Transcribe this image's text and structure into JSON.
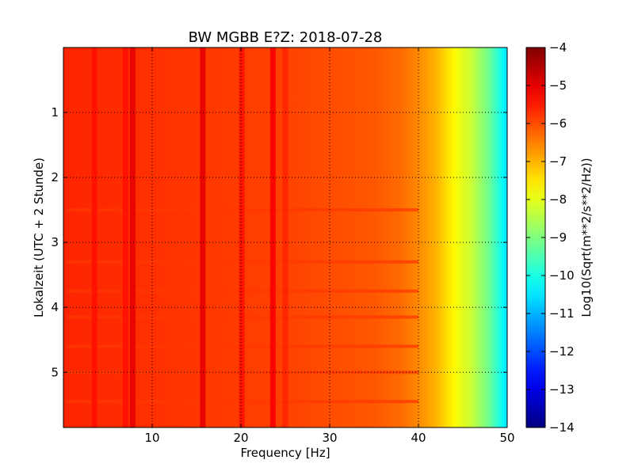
{
  "chart_data": {
    "type": "heatmap",
    "title": "BW MGBB E?Z: 2018-07-28",
    "xlabel": "Frequency [Hz]",
    "ylabel": "Lokalzeit (UTC + 2 Stunde)",
    "xlim": [
      0,
      50
    ],
    "ylim": [
      5.85,
      0
    ],
    "x_ticks": [
      10,
      20,
      30,
      40,
      50
    ],
    "y_ticks": [
      1,
      2,
      3,
      4,
      5
    ],
    "grid": true,
    "grid_style": "dotted",
    "colormap": "jet",
    "colorbar": {
      "label": "Log10(Sqrt(m**2/s**2/Hz))",
      "range": [
        -14,
        -4
      ],
      "ticks": [
        -4,
        -5,
        -6,
        -7,
        -8,
        -9,
        -10,
        -11,
        -12,
        -13,
        -14
      ]
    },
    "level_profile_by_frequency": [
      {
        "frequency": 0,
        "value": -5.6
      },
      {
        "frequency": 25,
        "value": -5.9
      },
      {
        "frequency": 35,
        "value": -6.1
      },
      {
        "frequency": 38,
        "value": -6.3
      },
      {
        "frequency": 40,
        "value": -6.6
      },
      {
        "frequency": 42,
        "value": -7.0
      },
      {
        "frequency": 44,
        "value": -7.7
      },
      {
        "frequency": 46,
        "value": -8.3
      },
      {
        "frequency": 48,
        "value": -9.2
      },
      {
        "frequency": 49.5,
        "value": -10.2
      },
      {
        "frequency": 50,
        "value": -10.6
      }
    ],
    "strong_frequency_bands": [
      {
        "frequency": 7.8,
        "value": -5.0
      },
      {
        "frequency": 15.7,
        "value": -5.0
      },
      {
        "frequency": 20.1,
        "value": -5.4
      },
      {
        "frequency": 23.6,
        "value": -5.2
      },
      {
        "frequency": 3.5,
        "value": -5.4
      },
      {
        "frequency": 7.0,
        "value": -5.4
      },
      {
        "frequency": 25.0,
        "value": -5.6
      }
    ],
    "time_bands": [
      {
        "time": 2.5,
        "value": -5.8
      },
      {
        "time": 3.3,
        "value": -5.8
      },
      {
        "time": 3.75,
        "value": -5.8
      },
      {
        "time": 4.15,
        "value": -5.8
      },
      {
        "time": 4.6,
        "value": -5.8
      },
      {
        "time": 5.0,
        "value": -5.8
      },
      {
        "time": 5.45,
        "value": -5.8
      }
    ]
  }
}
